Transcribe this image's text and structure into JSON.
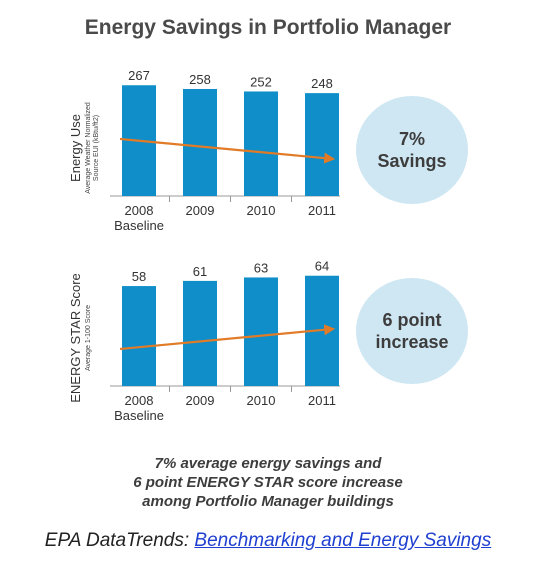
{
  "title": "Energy Savings in Portfolio Manager",
  "chart_data": [
    {
      "type": "bar",
      "ylabel": "Energy Use",
      "ylabel_sub": [
        "Average Weather Normalized",
        "Source EUI (kBtu/ft2)"
      ],
      "categories": [
        "2008",
        "2009",
        "2010",
        "2011"
      ],
      "category_sublabels": [
        "Baseline",
        "",
        "",
        ""
      ],
      "values": [
        267,
        258,
        252,
        248
      ],
      "trend": "down",
      "ylim": [
        0,
        270
      ],
      "bar_color": "#0f8ec9",
      "trend_color": "#e17b27",
      "annotation": [
        "7%",
        "Savings"
      ]
    },
    {
      "type": "bar",
      "ylabel": "ENERGY STAR Score",
      "ylabel_sub": [
        "Average 1-100 Score"
      ],
      "categories": [
        "2008",
        "2009",
        "2010",
        "2011"
      ],
      "category_sublabels": [
        "Baseline",
        "",
        "",
        ""
      ],
      "values": [
        58,
        61,
        63,
        64
      ],
      "trend": "up",
      "ylim": [
        0,
        65
      ],
      "bar_color": "#0f8ec9",
      "trend_color": "#e17b27",
      "annotation": [
        "6 point",
        "increase"
      ]
    }
  ],
  "summary": [
    "7% average energy savings and",
    "6 point ENERGY STAR score increase",
    "among Portfolio Manager buildings"
  ],
  "source": {
    "prefix": "EPA DataTrends: ",
    "link_text": "Benchmarking and Energy Savings"
  },
  "colors": {
    "bubble": "#cfe7f3",
    "link": "#1f3fd0"
  }
}
